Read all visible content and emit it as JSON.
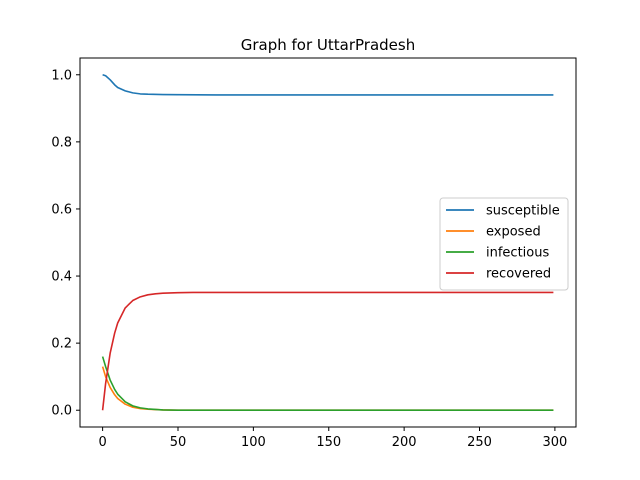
{
  "chart_data": {
    "type": "line",
    "title": "Graph for UttarPradesh",
    "xlabel": "",
    "ylabel": "",
    "xlim": [
      -15,
      314
    ],
    "ylim": [
      -0.05,
      1.05
    ],
    "x_ticks": [
      0,
      50,
      100,
      150,
      200,
      250,
      300
    ],
    "y_ticks": [
      0.0,
      0.2,
      0.4,
      0.6,
      0.8,
      1.0
    ],
    "x_tick_labels": [
      "0",
      "50",
      "100",
      "150",
      "200",
      "250",
      "300"
    ],
    "y_tick_labels": [
      "0.0",
      "0.2",
      "0.4",
      "0.6",
      "0.8",
      "1.0"
    ],
    "grid": false,
    "legend_position": "center-right",
    "series": [
      {
        "name": "susceptible",
        "color": "#1f77b4",
        "x": [
          0,
          2,
          5,
          8,
          10,
          15,
          20,
          25,
          30,
          40,
          50,
          75,
          100,
          150,
          200,
          250,
          299
        ],
        "y": [
          1.0,
          0.997,
          0.985,
          0.97,
          0.962,
          0.952,
          0.946,
          0.943,
          0.942,
          0.941,
          0.9405,
          0.94,
          0.94,
          0.94,
          0.94,
          0.94,
          0.94
        ]
      },
      {
        "name": "exposed",
        "color": "#ff7f0e",
        "x": [
          0,
          2,
          5,
          8,
          10,
          15,
          20,
          25,
          30,
          40,
          50,
          75,
          100,
          150,
          200,
          250,
          299
        ],
        "y": [
          0.13,
          0.1,
          0.068,
          0.046,
          0.035,
          0.018,
          0.009,
          0.005,
          0.003,
          0.001,
          0.0,
          0.0,
          0.0,
          0.0,
          0.0,
          0.0,
          0.0
        ]
      },
      {
        "name": "infectious",
        "color": "#2ca02c",
        "x": [
          0,
          2,
          5,
          8,
          10,
          15,
          20,
          25,
          30,
          40,
          50,
          75,
          100,
          150,
          200,
          250,
          299
        ],
        "y": [
          0.16,
          0.13,
          0.09,
          0.062,
          0.048,
          0.025,
          0.013,
          0.007,
          0.004,
          0.001,
          0.0,
          0.0,
          0.0,
          0.0,
          0.0,
          0.0,
          0.0
        ]
      },
      {
        "name": "recovered",
        "color": "#d62728",
        "x": [
          0,
          2,
          5,
          8,
          10,
          15,
          20,
          25,
          30,
          35,
          40,
          50,
          60,
          75,
          100,
          150,
          200,
          250,
          299
        ],
        "y": [
          0.0,
          0.08,
          0.17,
          0.23,
          0.26,
          0.305,
          0.327,
          0.338,
          0.344,
          0.347,
          0.349,
          0.3505,
          0.351,
          0.351,
          0.351,
          0.351,
          0.351,
          0.351,
          0.351
        ]
      }
    ]
  }
}
